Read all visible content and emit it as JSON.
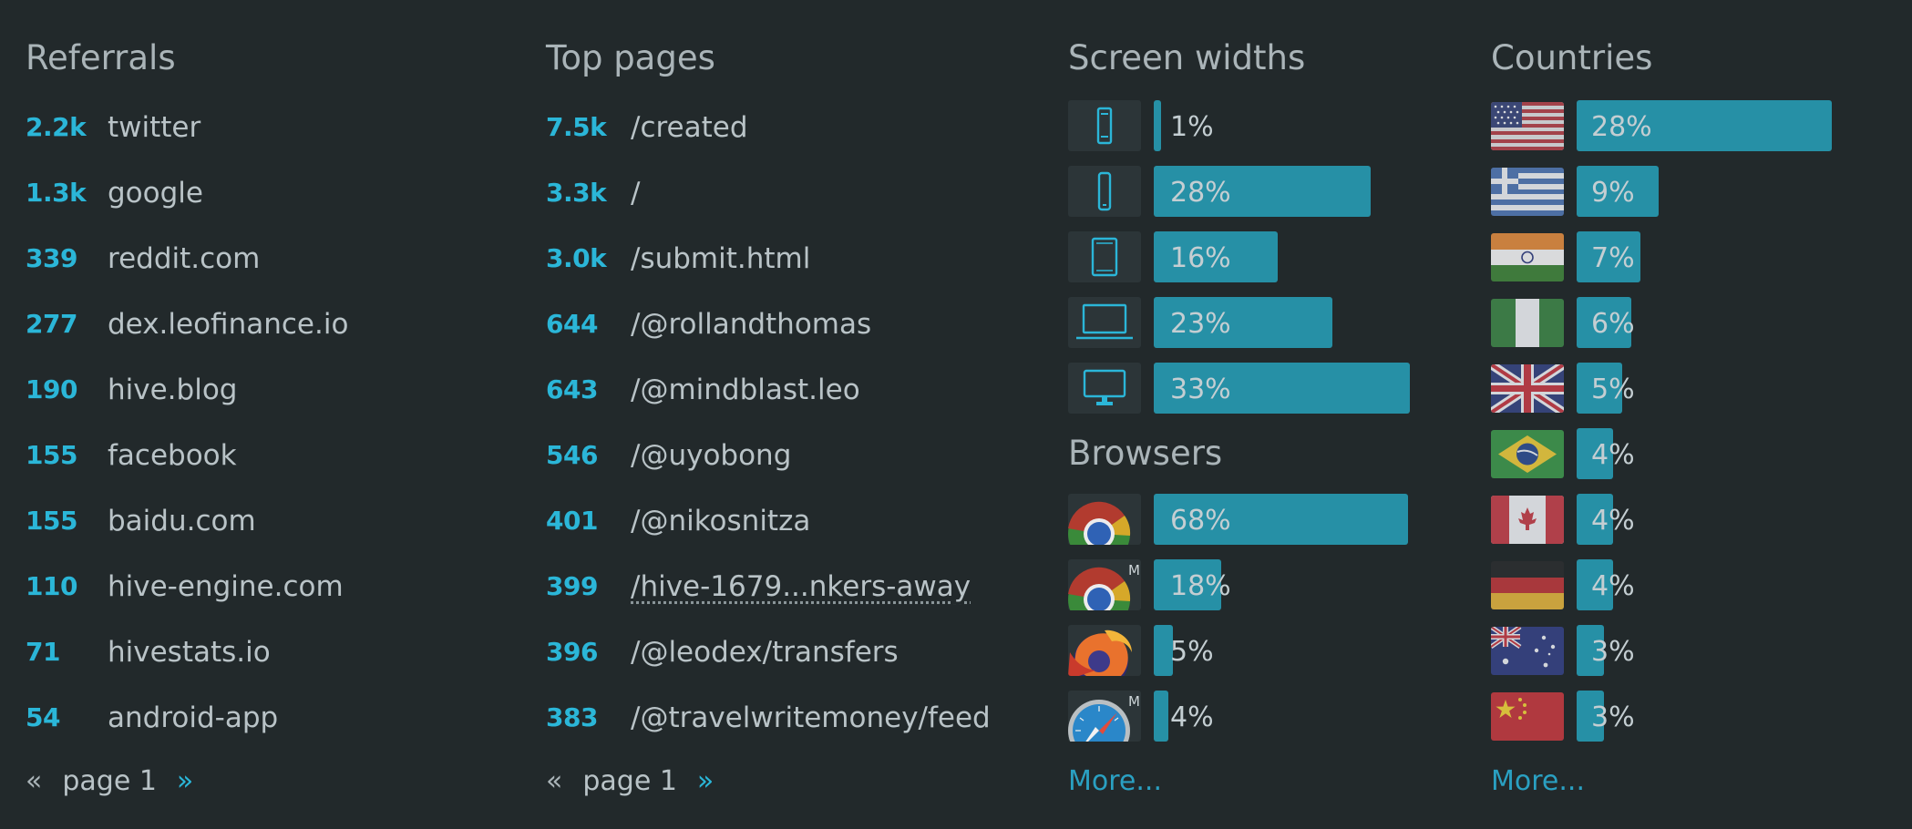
{
  "referrals": {
    "title": "Referrals",
    "rows": [
      {
        "count": "2.2k",
        "label": "twitter"
      },
      {
        "count": "1.3k",
        "label": "google"
      },
      {
        "count": "339",
        "label": "reddit.com"
      },
      {
        "count": "277",
        "label": "dex.leofinance.io"
      },
      {
        "count": "190",
        "label": "hive.blog"
      },
      {
        "count": "155",
        "label": "facebook"
      },
      {
        "count": "155",
        "label": "baidu.com"
      },
      {
        "count": "110",
        "label": "hive-engine.com"
      },
      {
        "count": "71",
        "label": "hivestats.io"
      },
      {
        "count": "54",
        "label": "android-app"
      }
    ],
    "pager": {
      "prev": "«",
      "page": "page 1",
      "next": "»"
    }
  },
  "top_pages": {
    "title": "Top pages",
    "rows": [
      {
        "count": "7.5k",
        "label": "/created"
      },
      {
        "count": "3.3k",
        "label": "/"
      },
      {
        "count": "3.0k",
        "label": "/submit.html"
      },
      {
        "count": "644",
        "label": "/@rollandthomas"
      },
      {
        "count": "643",
        "label": "/@mindblast.leo"
      },
      {
        "count": "546",
        "label": "/@uyobong"
      },
      {
        "count": "401",
        "label": "/@nikosnitza"
      },
      {
        "count": "399",
        "label": "/hive-1679...nkers-away"
      },
      {
        "count": "396",
        "label": "/@leodex/transfers"
      },
      {
        "count": "383",
        "label": "/@travelwritemoney/feed"
      }
    ],
    "pager": {
      "prev": "«",
      "page": "page 1",
      "next": "»"
    }
  },
  "screen_widths": {
    "title": "Screen widths",
    "rows": [
      {
        "icon": "small-phone-icon",
        "pct": "1%",
        "value": 1
      },
      {
        "icon": "phone-icon",
        "pct": "28%",
        "value": 28
      },
      {
        "icon": "tablet-icon",
        "pct": "16%",
        "value": 16
      },
      {
        "icon": "laptop-icon",
        "pct": "23%",
        "value": 23
      },
      {
        "icon": "desktop-icon",
        "pct": "33%",
        "value": 33
      }
    ]
  },
  "browsers": {
    "title": "Browsers",
    "rows": [
      {
        "icon": "chrome-icon",
        "pct": "68%",
        "value": 68
      },
      {
        "icon": "chrome-mobile-icon",
        "badge": "M",
        "pct": "18%",
        "value": 18
      },
      {
        "icon": "firefox-icon",
        "pct": "5%",
        "value": 5
      },
      {
        "icon": "safari-mobile-icon",
        "badge": "M",
        "pct": "4%",
        "value": 4
      }
    ],
    "more": "More..."
  },
  "countries": {
    "title": "Countries",
    "rows": [
      {
        "flag": "us-flag-icon",
        "pct": "28%",
        "value": 28
      },
      {
        "flag": "greece-flag-icon",
        "pct": "9%",
        "value": 9
      },
      {
        "flag": "india-flag-icon",
        "pct": "7%",
        "value": 7
      },
      {
        "flag": "nigeria-flag-icon",
        "pct": "6%",
        "value": 6
      },
      {
        "flag": "uk-flag-icon",
        "pct": "5%",
        "value": 5
      },
      {
        "flag": "brazil-flag-icon",
        "pct": "4%",
        "value": 4
      },
      {
        "flag": "canada-flag-icon",
        "pct": "4%",
        "value": 4
      },
      {
        "flag": "germany-flag-icon",
        "pct": "4%",
        "value": 4
      },
      {
        "flag": "australia-flag-icon",
        "pct": "3%",
        "value": 3
      },
      {
        "flag": "china-flag-icon",
        "pct": "3%",
        "value": 3
      }
    ],
    "more": "More..."
  },
  "colors": {
    "accent": "#2bb6d8",
    "bar": "#2690a6",
    "background": "#22292b"
  }
}
